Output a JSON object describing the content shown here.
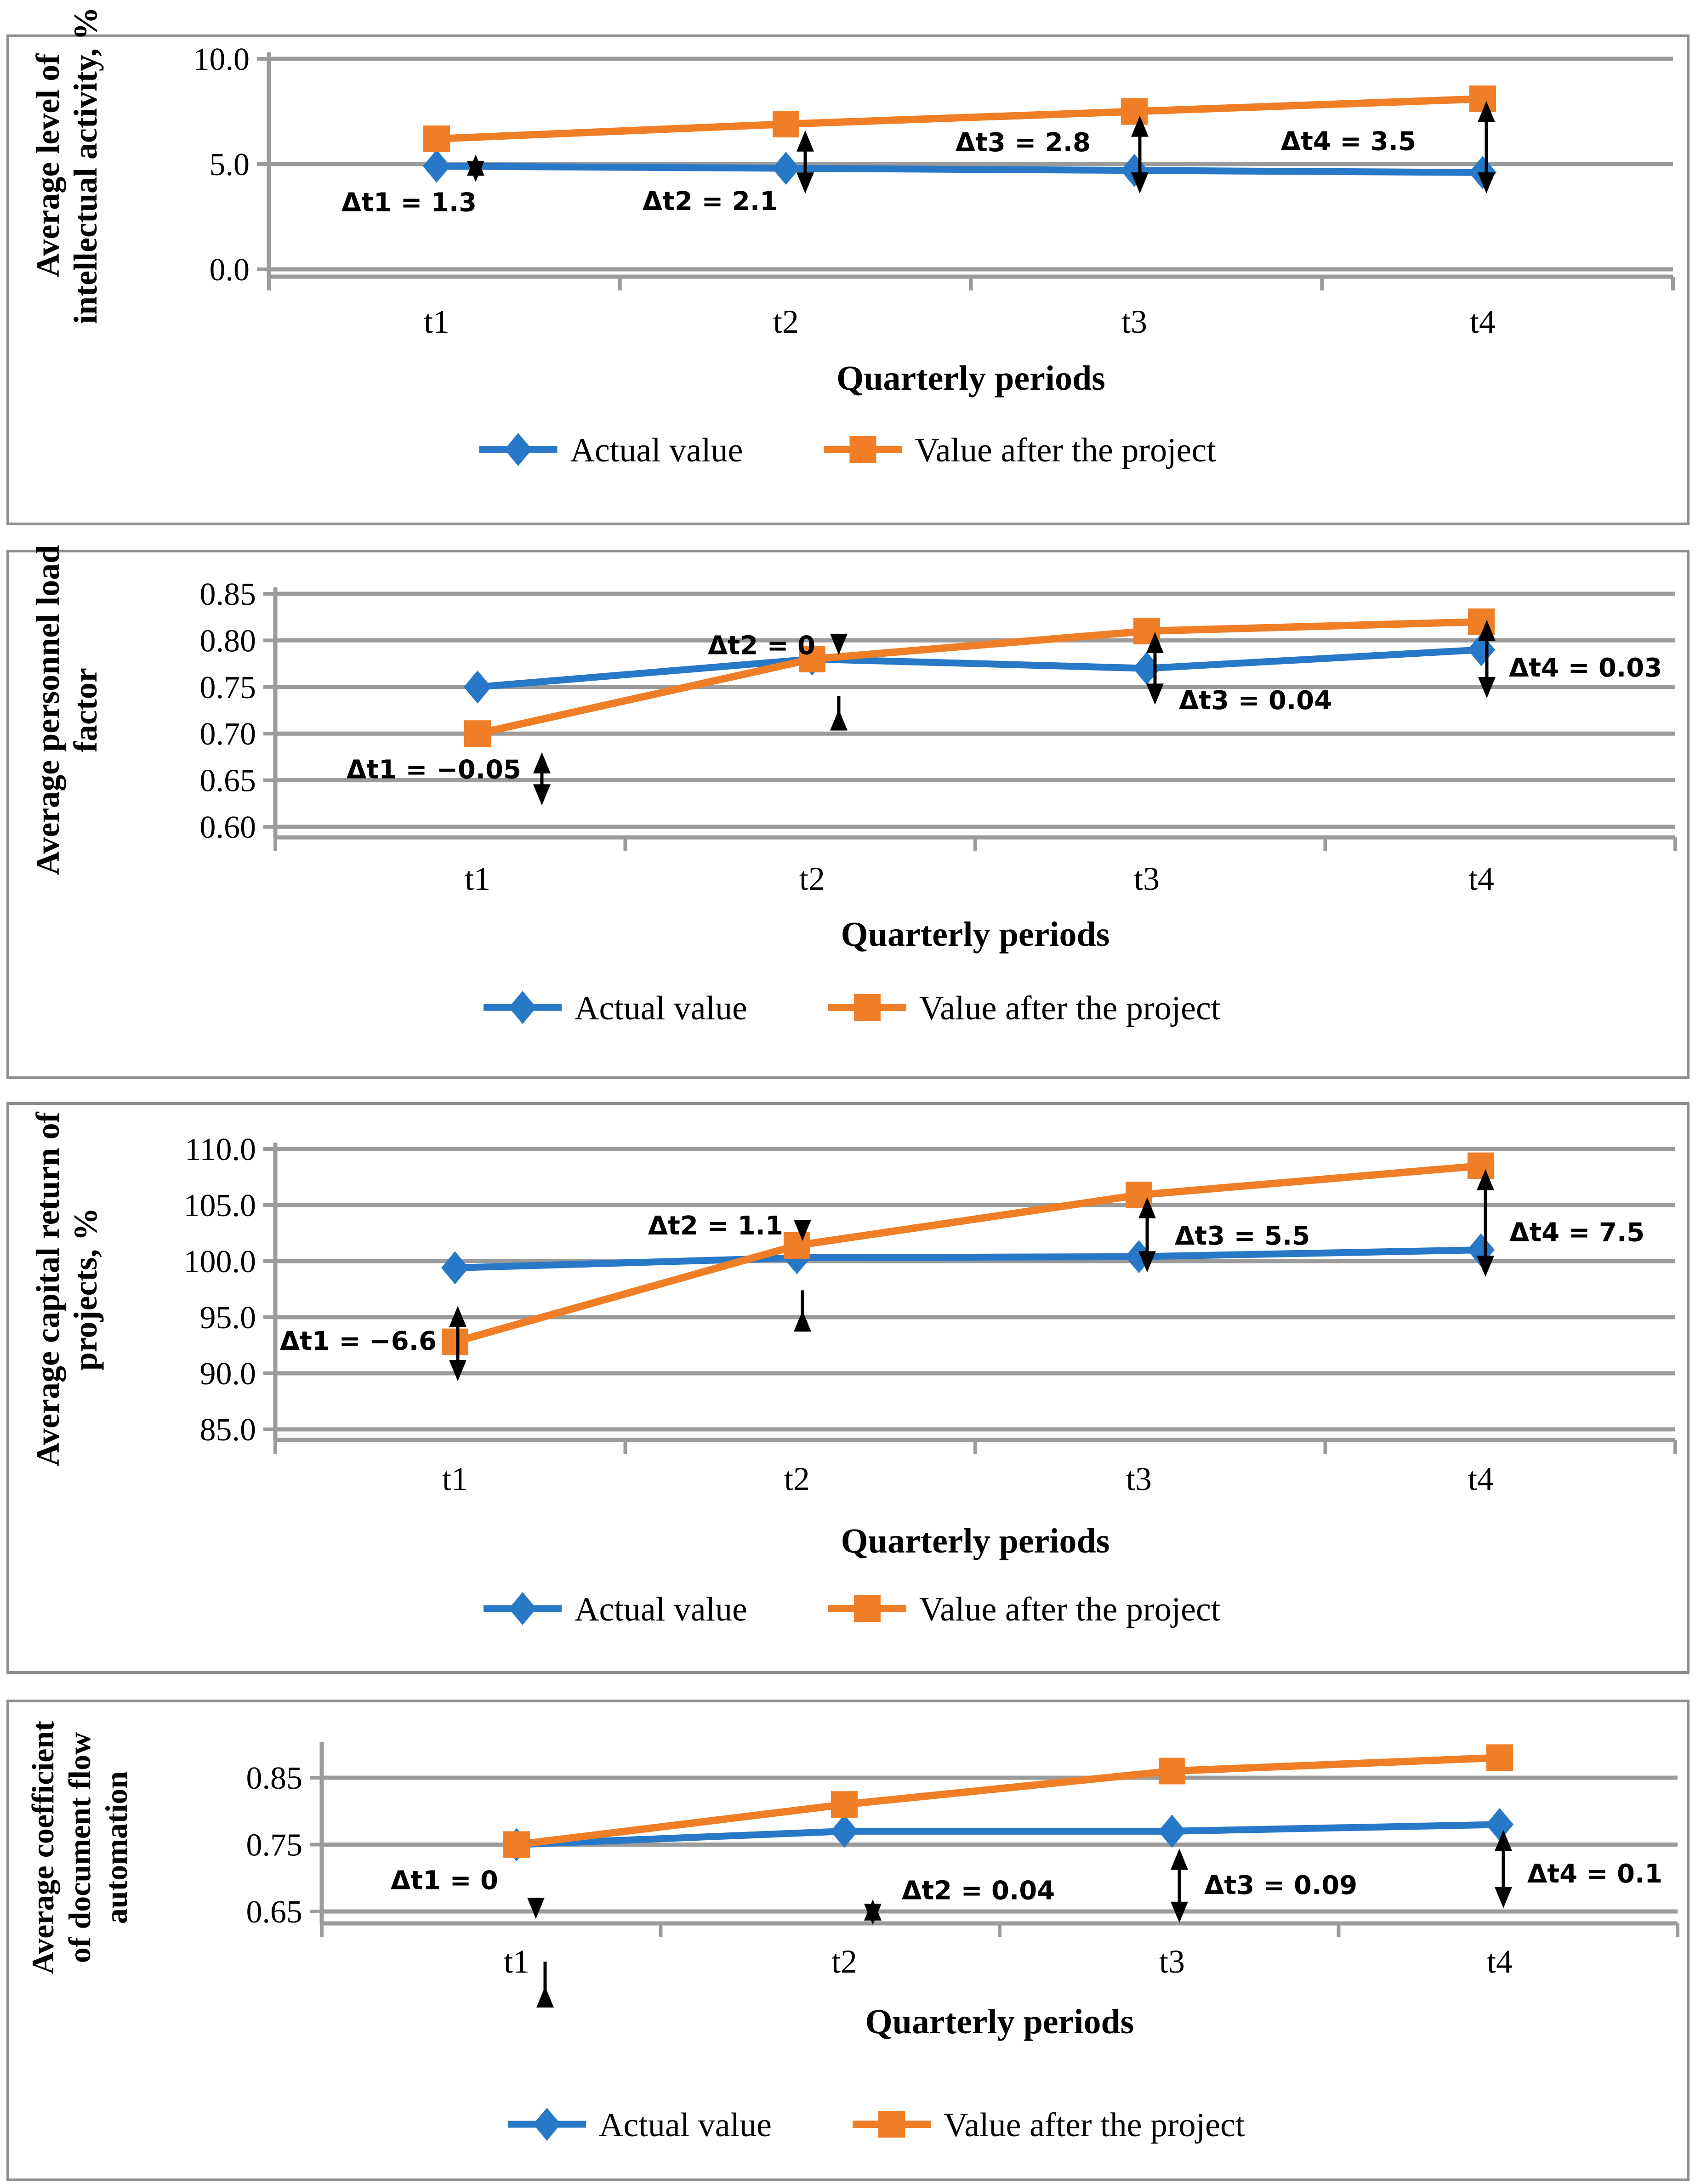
{
  "page": {
    "background": "#ffffff"
  },
  "colors": {
    "actual_series": "#2878C8",
    "project_series": "#F07E26",
    "grid": "#9B9B9B",
    "annotation": "#000000",
    "panel_border": "#8e8e8e"
  },
  "chart_data": [
    {
      "type": "line",
      "title": "",
      "y_axis": {
        "title_lines": [
          "Average level of",
          "intellectual activity, %"
        ],
        "ticks": [
          {
            "label": "10.0",
            "value": 10.0
          },
          {
            "label": "5.0",
            "value": 5.0
          },
          {
            "label": "0.0",
            "value": 0.0
          }
        ]
      },
      "x_axis": {
        "title": "Quarterly periods",
        "labels": [
          "t1",
          "t2",
          "t3",
          "t4"
        ]
      },
      "legend": [
        "Actual value",
        "Value after the project"
      ],
      "series": [
        {
          "name": "Actual value",
          "marker": "diamond",
          "values": [
            4.9,
            4.8,
            4.7,
            4.6
          ]
        },
        {
          "name": "Value after the project",
          "marker": "square",
          "values": [
            6.2,
            6.9,
            7.5,
            8.1
          ]
        }
      ],
      "annotations": [
        {
          "text": "Δt1 = 1.3",
          "t": 0,
          "delta": 1.3,
          "label": {
            "anchor": "middle",
            "dx": -60,
            "v": 3.2
          },
          "arrows": [
            {
              "dx": 85,
              "v1": 5.45,
              "v2": 4.15,
              "heads": "both"
            }
          ]
        },
        {
          "text": "Δt2 = 2.1",
          "t": 1,
          "delta": 2.1,
          "label": {
            "anchor": "middle",
            "dx": -165,
            "v": 3.25
          },
          "arrows": [
            {
              "dx": 42,
              "v1": 6.6,
              "v2": 3.6,
              "heads": "both"
            }
          ]
        },
        {
          "text": "Δt3 = 2.8",
          "t": 2,
          "delta": 2.8,
          "label": {
            "anchor": "end",
            "dx": -95,
            "v": 6.05
          },
          "arrows": [
            {
              "dx": 12,
              "v1": 7.3,
              "v2": 3.6,
              "heads": "both"
            }
          ]
        },
        {
          "text": "Δt4 = 3.5",
          "t": 3,
          "delta": 3.5,
          "label": {
            "anchor": "end",
            "dx": -145,
            "v": 6.1
          },
          "arrows": [
            {
              "dx": 8,
              "v1": 8.0,
              "v2": 3.6,
              "heads": "both"
            }
          ]
        }
      ]
    },
    {
      "type": "line",
      "title": "",
      "y_axis": {
        "title_lines": [
          "Average personnel load",
          "factor"
        ],
        "ticks": [
          {
            "label": "0.85",
            "value": 0.85
          },
          {
            "label": "0.80",
            "value": 0.8
          },
          {
            "label": "0.75",
            "value": 0.75
          },
          {
            "label": "0.70",
            "value": 0.7
          },
          {
            "label": "0.65",
            "value": 0.65
          },
          {
            "label": "0.60",
            "value": 0.6
          }
        ]
      },
      "x_axis": {
        "title": "Quarterly periods",
        "labels": [
          "t1",
          "t2",
          "t3",
          "t4"
        ]
      },
      "legend": [
        "Actual value",
        "Value after the project"
      ],
      "series": [
        {
          "name": "Actual value",
          "marker": "diamond",
          "values": [
            0.75,
            0.78,
            0.77,
            0.79
          ]
        },
        {
          "name": "Value after the project",
          "marker": "square",
          "values": [
            0.7,
            0.78,
            0.81,
            0.82
          ]
        }
      ],
      "annotations": [
        {
          "text": "Δt1 = −0.05",
          "t": 0,
          "delta": -0.05,
          "label": {
            "anchor": "end",
            "dx": 95,
            "v": 0.662
          },
          "arrows": [
            {
              "dx": 140,
              "v1": 0.68,
              "v2": 0.623,
              "heads": "both"
            }
          ]
        },
        {
          "text": "Δt2 = 0",
          "t": 1,
          "delta": 0,
          "label": {
            "anchor": "middle",
            "dx": -110,
            "v": 0.795
          },
          "arrows": [
            {
              "dx": 58,
              "v1": 0.799,
              "v2": 0.7845,
              "heads": "down"
            },
            {
              "dx": 58,
              "v1": 0.726,
              "v2": 0.7405,
              "heads": "up"
            }
          ]
        },
        {
          "text": "Δt3 = 0.04",
          "t": 2,
          "delta": 0.04,
          "label": {
            "anchor": "start",
            "dx": 70,
            "v": 0.736
          },
          "arrows": [
            {
              "dx": 18,
              "v1": 0.809,
              "v2": 0.731,
              "heads": "both"
            }
          ]
        },
        {
          "text": "Δt4 = 0.03",
          "t": 3,
          "delta": 0.03,
          "label": {
            "anchor": "start",
            "dx": 60,
            "v": 0.771
          },
          "arrows": [
            {
              "dx": 12,
              "v1": 0.822,
              "v2": 0.738,
              "heads": "both"
            }
          ]
        }
      ]
    },
    {
      "type": "line",
      "title": "",
      "y_axis": {
        "title_lines": [
          "Average capital return of",
          "projects, %"
        ],
        "ticks": [
          {
            "label": "110.0",
            "value": 110.0
          },
          {
            "label": "105.0",
            "value": 105.0
          },
          {
            "label": "100.0",
            "value": 100.0
          },
          {
            "label": "95.0",
            "value": 95.0
          },
          {
            "label": "90.0",
            "value": 90.0
          },
          {
            "label": "85.0",
            "value": 85.0
          }
        ]
      },
      "x_axis": {
        "title": "Quarterly periods",
        "labels": [
          "t1",
          "t2",
          "t3",
          "t4"
        ]
      },
      "legend": [
        "Actual value",
        "Value after the project"
      ],
      "series": [
        {
          "name": "Actual value",
          "marker": "diamond",
          "values": [
            99.4,
            100.3,
            100.4,
            101.0
          ]
        },
        {
          "name": "Value after the project",
          "marker": "square",
          "values": [
            92.8,
            101.4,
            105.9,
            108.5
          ]
        }
      ],
      "annotations": [
        {
          "text": "Δt1 = −6.6",
          "t": 0,
          "delta": -6.6,
          "label": {
            "anchor": "end",
            "dx": -40,
            "v": 92.9
          },
          "arrows": [
            {
              "dx": 6,
              "v1": 96.0,
              "v2": 89.3,
              "heads": "both"
            }
          ]
        },
        {
          "text": "Δt2 = 1.1",
          "t": 1,
          "delta": 1.1,
          "label": {
            "anchor": "end",
            "dx": -30,
            "v": 103.2
          },
          "arrows": [
            {
              "dx": 12,
              "v1": 103.6,
              "v2": 101.8,
              "heads": "down"
            },
            {
              "dx": 12,
              "v1": 95.6,
              "v2": 97.4,
              "heads": "up"
            }
          ]
        },
        {
          "text": "Δt3 = 5.5",
          "t": 2,
          "delta": 5.5,
          "label": {
            "anchor": "start",
            "dx": 78,
            "v": 102.3
          },
          "arrows": [
            {
              "dx": 18,
              "v1": 105.7,
              "v2": 99.0,
              "heads": "both"
            }
          ]
        },
        {
          "text": "Δt4 = 7.5",
          "t": 3,
          "delta": 7.5,
          "label": {
            "anchor": "start",
            "dx": 62,
            "v": 102.6
          },
          "arrows": [
            {
              "dx": 10,
              "v1": 108.2,
              "v2": 98.6,
              "heads": "both"
            }
          ]
        }
      ]
    },
    {
      "type": "line",
      "title": "",
      "y_axis": {
        "title_lines": [
          "Average coefficient",
          "of document flow",
          "automation"
        ],
        "ticks": [
          {
            "label": "0.85",
            "value": 0.85
          },
          {
            "label": "0.75",
            "value": 0.75
          },
          {
            "label": "0.65",
            "value": 0.65
          }
        ]
      },
      "x_axis": {
        "title": "Quarterly periods",
        "labels": [
          "t1",
          "t2",
          "t3",
          "t4"
        ]
      },
      "legend": [
        "Actual value",
        "Value after the project"
      ],
      "series": [
        {
          "name": "Actual value",
          "marker": "diamond",
          "values": [
            0.75,
            0.77,
            0.77,
            0.78
          ]
        },
        {
          "name": "Value after the project",
          "marker": "square",
          "values": [
            0.75,
            0.81,
            0.86,
            0.88
          ]
        }
      ],
      "annotations": [
        {
          "text": "Δt1 = 0",
          "t": 0,
          "delta": 0,
          "label": {
            "anchor": "end",
            "dx": -40,
            "v": 0.697
          },
          "arrows": [
            {
              "dx": 42,
              "v1": 0.662,
              "v2": 0.639,
              "heads": "down"
            },
            {
              "dx": 62,
              "v1": 0.538,
              "v2": 0.575,
              "heads": "up"
            }
          ]
        },
        {
          "text": "Δt2 = 0.04",
          "t": 1,
          "delta": 0.04,
          "label": {
            "anchor": "start",
            "dx": 125,
            "v": 0.682
          },
          "arrows": [
            {
              "dx": 62,
              "v1": 0.668,
              "v2": 0.63,
              "heads": "both"
            }
          ]
        },
        {
          "text": "Δt3 = 0.09",
          "t": 2,
          "delta": 0.09,
          "label": {
            "anchor": "start",
            "dx": 70,
            "v": 0.69
          },
          "arrows": [
            {
              "dx": 16,
              "v1": 0.744,
              "v2": 0.633,
              "heads": "both"
            }
          ]
        },
        {
          "text": "Δt4 = 0.1",
          "t": 3,
          "delta": 0.1,
          "label": {
            "anchor": "start",
            "dx": 60,
            "v": 0.707
          },
          "arrows": [
            {
              "dx": 8,
              "v1": 0.772,
              "v2": 0.655,
              "heads": "both"
            }
          ]
        }
      ]
    }
  ]
}
